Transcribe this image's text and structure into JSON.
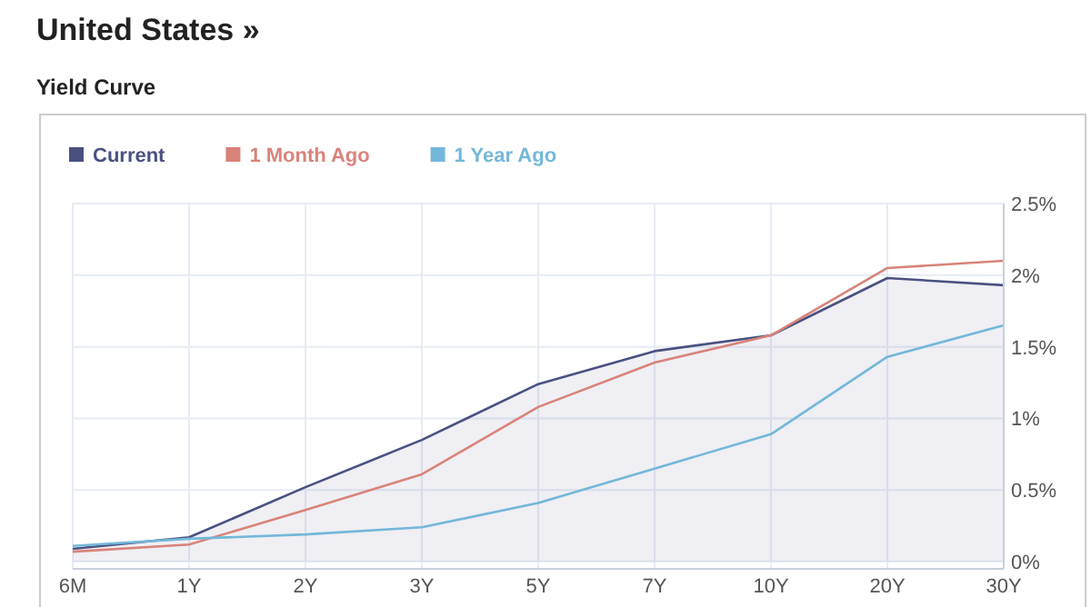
{
  "chart_data": {
    "type": "line",
    "title": "United States »",
    "subtitle": "Yield Curve",
    "categories": [
      "6M",
      "1Y",
      "2Y",
      "3Y",
      "5Y",
      "7Y",
      "10Y",
      "20Y",
      "30Y"
    ],
    "series": [
      {
        "name": "Current",
        "type": "area",
        "color": "#4a5180",
        "values": [
          0.09,
          0.17,
          0.52,
          0.85,
          1.24,
          1.47,
          1.58,
          1.98,
          1.93
        ]
      },
      {
        "name": "1 Month Ago",
        "color": "#d9837a",
        "values": [
          0.07,
          0.12,
          0.36,
          0.61,
          1.08,
          1.39,
          1.58,
          2.05,
          2.1
        ]
      },
      {
        "name": "1 Year Ago",
        "color": "#74b7d9",
        "values": [
          0.11,
          0.16,
          0.19,
          0.24,
          0.41,
          0.65,
          0.89,
          1.43,
          1.65
        ]
      }
    ],
    "ylim": [
      -0.05,
      2.5
    ],
    "yticks": [
      {
        "value": 0,
        "label": "0%"
      },
      {
        "value": 0.5,
        "label": "0.5%"
      },
      {
        "value": 1,
        "label": "1%"
      },
      {
        "value": 1.5,
        "label": "1.5%"
      },
      {
        "value": 2,
        "label": "2%"
      },
      {
        "value": 2.5,
        "label": "2.5%"
      }
    ],
    "grid": true,
    "legend": "top left",
    "marker": "none",
    "line_style": "solid"
  }
}
